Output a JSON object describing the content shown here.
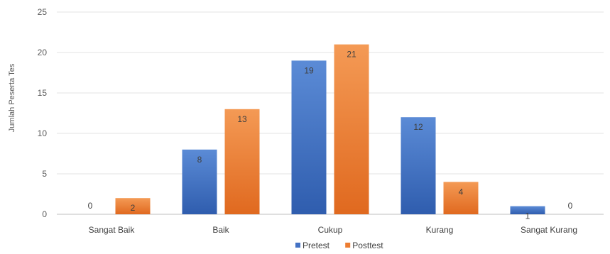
{
  "chart_data": {
    "type": "bar",
    "ylabel": "Jumlah Peserta Tes",
    "categories": [
      "Sangat Baik",
      "Baik",
      "Cukup",
      "Kurang",
      "Sangat Kurang"
    ],
    "series": [
      {
        "name": "Pretest",
        "color": "#4472C4",
        "values": [
          0,
          8,
          19,
          12,
          1
        ]
      },
      {
        "name": "Posttest",
        "color": "#ED7D31",
        "values": [
          2,
          13,
          21,
          4,
          0
        ]
      }
    ],
    "ylim": [
      0,
      25
    ],
    "yticks": [
      0,
      5,
      10,
      15,
      20,
      25
    ],
    "grid": true,
    "legend_position": "bottom",
    "data_labels": true
  }
}
